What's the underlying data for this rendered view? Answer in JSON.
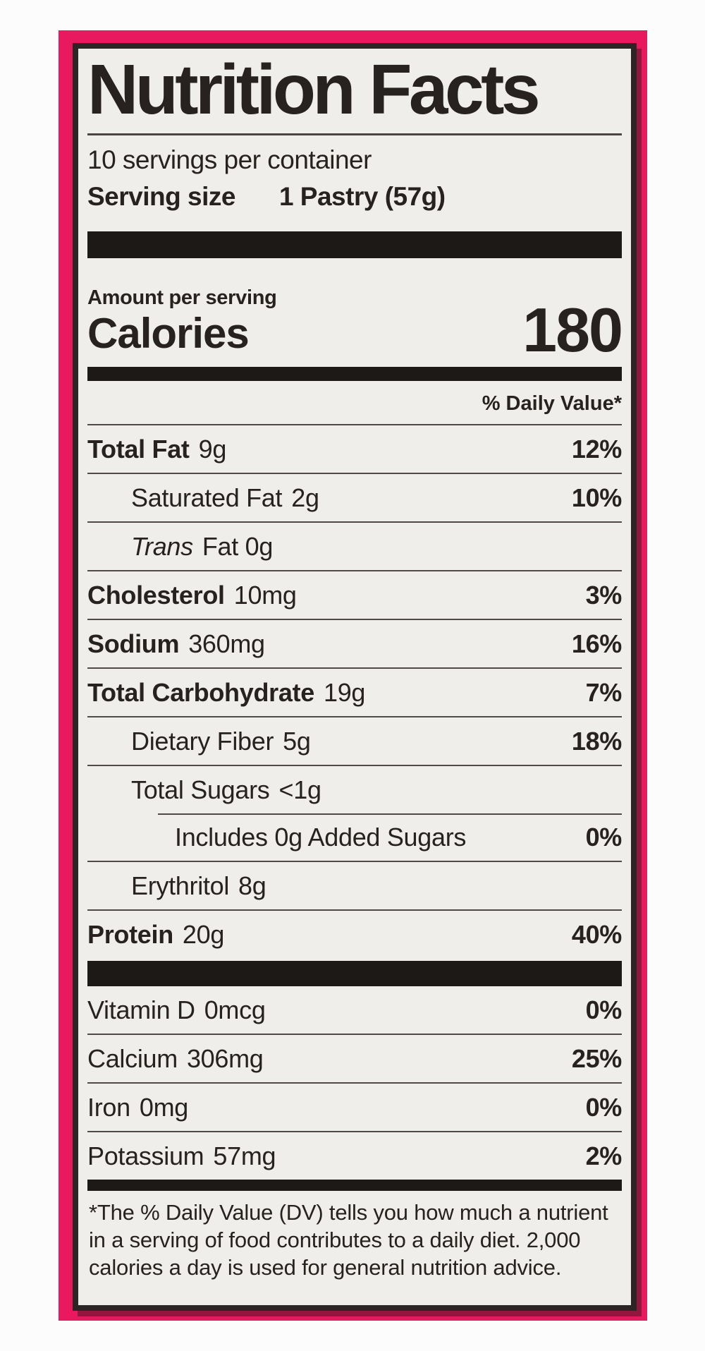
{
  "label": {
    "title": "Nutrition Facts",
    "servings_per_container": "10 servings per container",
    "serving_size_label": "Serving size",
    "serving_size_value": "1 Pastry (57g)",
    "amount_per_serving": "Amount per serving",
    "calories_label": "Calories",
    "calories_value": "180",
    "daily_value_header": "% Daily Value*",
    "rows": [
      {
        "name": "Total Fat",
        "amount": "9g",
        "dv": "12%"
      },
      {
        "name": "Saturated Fat",
        "amount": "2g",
        "dv": "10%"
      },
      {
        "name": "Trans",
        "amount": "Fat 0g",
        "dv": ""
      },
      {
        "name": "Cholesterol",
        "amount": "10mg",
        "dv": "3%"
      },
      {
        "name": "Sodium",
        "amount": "360mg",
        "dv": "16%"
      },
      {
        "name": "Total Carbohydrate",
        "amount": "19g",
        "dv": "7%"
      },
      {
        "name": "Dietary Fiber",
        "amount": "5g",
        "dv": "18%"
      },
      {
        "name": "Total Sugars",
        "amount": "<1g",
        "dv": ""
      },
      {
        "name": "Includes 0g Added Sugars",
        "amount": "",
        "dv": "0%"
      },
      {
        "name": "Erythritol",
        "amount": "8g",
        "dv": ""
      },
      {
        "name": "Protein",
        "amount": "20g",
        "dv": "40%"
      }
    ],
    "vitamin_rows": [
      {
        "name": "Vitamin D",
        "amount": "0mcg",
        "dv": "0%"
      },
      {
        "name": "Calcium",
        "amount": "306mg",
        "dv": "25%"
      },
      {
        "name": "Iron",
        "amount": "0mg",
        "dv": "0%"
      },
      {
        "name": "Potassium",
        "amount": "57mg",
        "dv": "2%"
      }
    ],
    "footnote": "*The % Daily Value (DV) tells you how much a nutrient in a serving of food contributes to a daily diet. 2,000 calories a day is used for general nutrition advice."
  },
  "colors": {
    "frame_pink": "#e9195f",
    "label_background": "#f0eeea",
    "label_border": "#2b2526",
    "text": "#27221f",
    "bar_black": "#1c1917"
  }
}
